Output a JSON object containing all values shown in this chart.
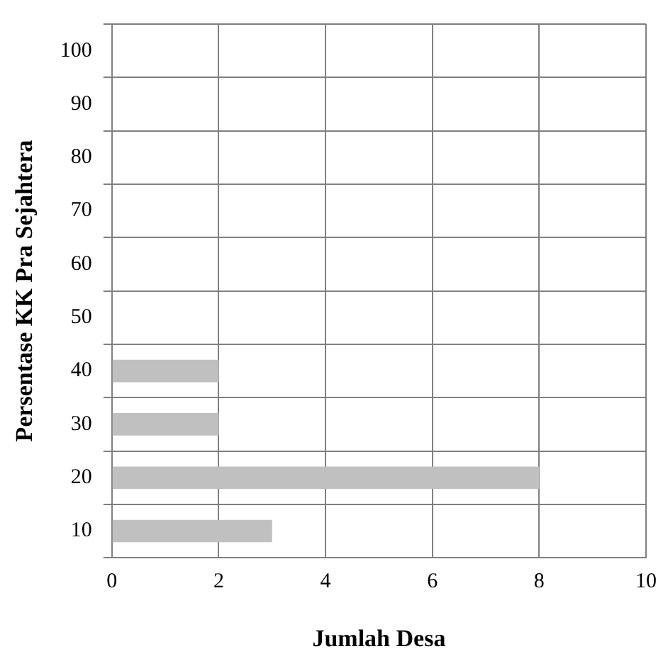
{
  "chart_data": {
    "type": "bar",
    "orientation": "horizontal",
    "xlabel": "Jumlah Desa",
    "ylabel": "Persentase KK Pra Sejahtera",
    "categories": [
      "100",
      "90",
      "80",
      "70",
      "60",
      "50",
      "40",
      "30",
      "20",
      "10"
    ],
    "values": [
      0,
      0,
      0,
      0,
      0,
      0,
      2,
      2,
      8,
      3
    ],
    "color": "#c0c0c0",
    "xlim": [
      0,
      10
    ],
    "xticks": [
      0,
      2,
      4,
      6,
      8,
      10
    ],
    "grid": true,
    "legend": false
  }
}
